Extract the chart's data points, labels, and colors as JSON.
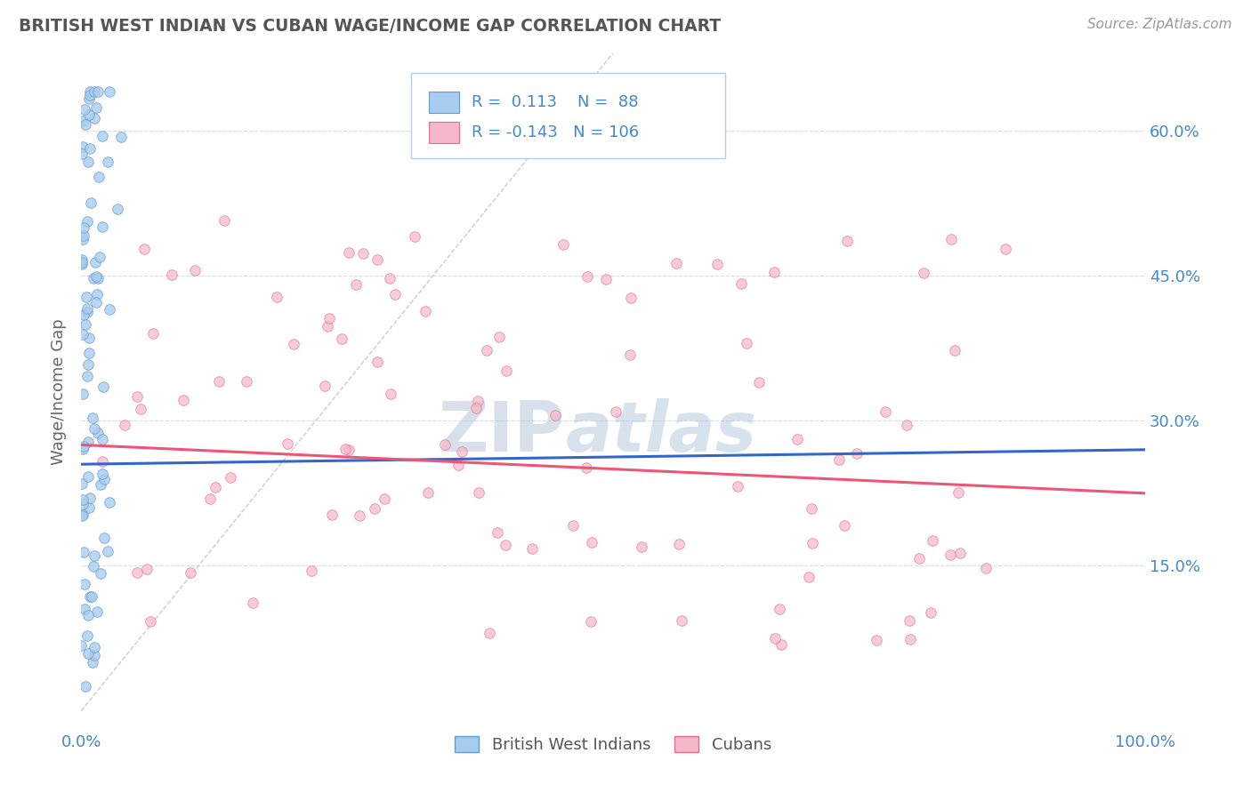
{
  "title": "BRITISH WEST INDIAN VS CUBAN WAGE/INCOME GAP CORRELATION CHART",
  "source": "Source: ZipAtlas.com",
  "ylabel": "Wage/Income Gap",
  "xlim": [
    0.0,
    1.0
  ],
  "ylim": [
    -0.02,
    0.68
  ],
  "yticks": [
    0.15,
    0.3,
    0.45,
    0.6
  ],
  "ytick_labels": [
    "15.0%",
    "30.0%",
    "45.0%",
    "60.0%"
  ],
  "xtick_labels": [
    "0.0%",
    "100.0%"
  ],
  "blue_R": 0.113,
  "blue_N": 88,
  "pink_R": -0.143,
  "pink_N": 106,
  "blue_color": "#A8CCF0",
  "pink_color": "#F5B8C8",
  "blue_edge": "#6699CC",
  "pink_edge": "#E07090",
  "trend_blue": "#3366CC",
  "trend_pink": "#EE5577",
  "ref_line_color": "#CCCCCC",
  "tick_color": "#4488CC",
  "background": "#FFFFFF",
  "grid_color": "#DDDDDD",
  "title_color": "#555555",
  "watermark_color": "#C5D8F0",
  "blue_seed": 12,
  "pink_seed": 77
}
